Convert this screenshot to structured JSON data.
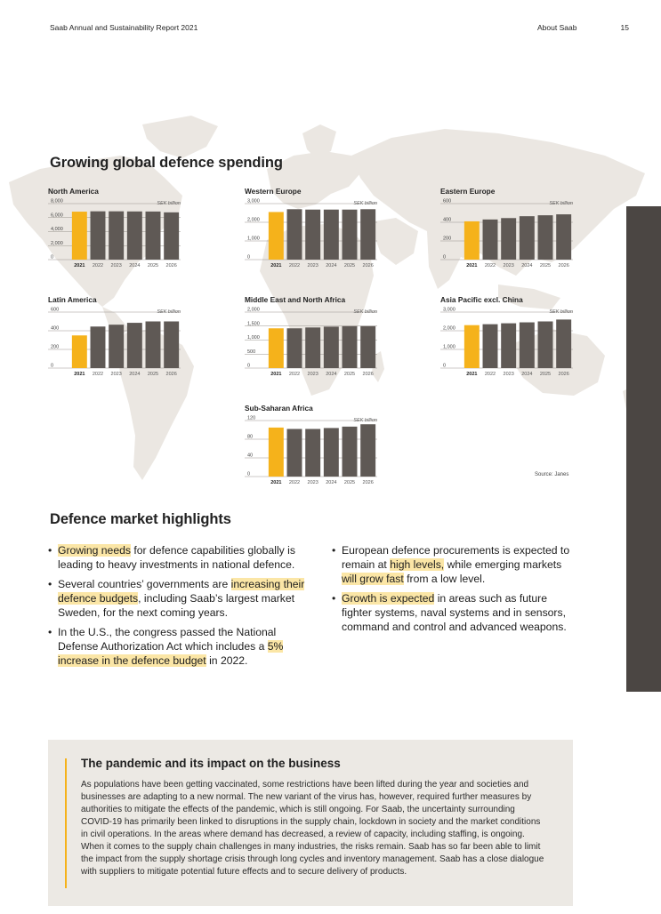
{
  "header": {
    "doc_title": "Saab Annual and Sustainability Report 2021",
    "section": "About Saab",
    "page_number": "15"
  },
  "spending_title": "Growing global defence spending",
  "source": "Source: Janes",
  "colors": {
    "highlight_bar": "#f5b21b",
    "bar": "#5f5955",
    "map": "#ebe7e2",
    "side_tab": "#4b4643"
  },
  "chart_data": [
    {
      "type": "bar",
      "title": "North America",
      "unit": "SEK billion",
      "categories": [
        "2021",
        "2022",
        "2023",
        "2024",
        "2025",
        "2026"
      ],
      "values": [
        6850,
        6900,
        6900,
        6880,
        6870,
        6750
      ],
      "ylim": [
        0,
        8000
      ],
      "yticks": [
        "0",
        "2,000",
        "4,000",
        "6,000",
        "8,000"
      ],
      "ytick_values": [
        0,
        2000,
        4000,
        6000,
        8000
      ]
    },
    {
      "type": "bar",
      "title": "Western Europe",
      "unit": "SEK billion",
      "categories": [
        "2021",
        "2022",
        "2023",
        "2024",
        "2025",
        "2026"
      ],
      "values": [
        2550,
        2700,
        2680,
        2680,
        2680,
        2700
      ],
      "ylim": [
        0,
        3000
      ],
      "yticks": [
        "0",
        "1,000",
        "2,000",
        "3,000"
      ],
      "ytick_values": [
        0,
        1000,
        2000,
        3000
      ]
    },
    {
      "type": "bar",
      "title": "Eastern Europe",
      "unit": "SEK billion",
      "categories": [
        "2021",
        "2022",
        "2023",
        "2024",
        "2025",
        "2026"
      ],
      "values": [
        410,
        430,
        445,
        465,
        475,
        485
      ],
      "ylim": [
        0,
        600
      ],
      "yticks": [
        "0",
        "200",
        "400",
        "600"
      ],
      "ytick_values": [
        0,
        200,
        400,
        600
      ]
    },
    {
      "type": "bar",
      "title": "Latin America",
      "unit": "SEK billion",
      "categories": [
        "2021",
        "2022",
        "2023",
        "2024",
        "2025",
        "2026"
      ],
      "values": [
        350,
        445,
        465,
        485,
        500,
        500
      ],
      "ylim": [
        0,
        600
      ],
      "yticks": [
        "0",
        "200",
        "400",
        "600"
      ],
      "ytick_values": [
        0,
        200,
        400,
        600
      ]
    },
    {
      "type": "bar",
      "title": "Middle East and North Africa",
      "unit": "SEK billion",
      "categories": [
        "2021",
        "2022",
        "2023",
        "2024",
        "2025",
        "2026"
      ],
      "values": [
        1420,
        1420,
        1450,
        1480,
        1500,
        1500
      ],
      "ylim": [
        0,
        2000
      ],
      "yticks": [
        "0",
        "500",
        "1,000",
        "1,500",
        "2,000"
      ],
      "ytick_values": [
        0,
        500,
        1000,
        1500,
        2000
      ]
    },
    {
      "type": "bar",
      "title": "Asia Pacific excl. China",
      "unit": "SEK billion",
      "categories": [
        "2021",
        "2022",
        "2023",
        "2024",
        "2025",
        "2026"
      ],
      "values": [
        2300,
        2350,
        2400,
        2450,
        2500,
        2600
      ],
      "ylim": [
        0,
        3000
      ],
      "yticks": [
        "0",
        "1,000",
        "2,000",
        "3,000"
      ],
      "ytick_values": [
        0,
        1000,
        2000,
        3000
      ]
    },
    {
      "type": "bar",
      "title": "Sub-Saharan Africa",
      "unit": "SEK billion",
      "categories": [
        "2021",
        "2022",
        "2023",
        "2024",
        "2025",
        "2026"
      ],
      "values": [
        105,
        102,
        102,
        104,
        107,
        112
      ],
      "ylim": [
        0,
        120
      ],
      "yticks": [
        "0",
        "40",
        "80",
        "120"
      ],
      "ytick_values": [
        0,
        40,
        80,
        120
      ]
    }
  ],
  "highlights": {
    "title": "Defence market highlights",
    "left": [
      [
        {
          "t": "Growing needs",
          "h": true
        },
        {
          "t": " for defence capabilities globally is leading to heavy investments in national defence.",
          "h": false
        }
      ],
      [
        {
          "t": "Several countries’ governments are ",
          "h": false
        },
        {
          "t": "increasing their defence budgets",
          "h": true
        },
        {
          "t": ", including Saab’s largest market Sweden, for the next coming years.",
          "h": false
        }
      ],
      [
        {
          "t": "In the U.S., the congress passed the National Defense Authorization Act which includes a ",
          "h": false
        },
        {
          "t": "5% increase in the defence budget",
          "h": true
        },
        {
          "t": " in 2022.",
          "h": false
        }
      ]
    ],
    "right": [
      [
        {
          "t": "European defence procurements is expected to remain at ",
          "h": false
        },
        {
          "t": "high levels,",
          "h": true
        },
        {
          "t": " while emerging markets ",
          "h": false
        },
        {
          "t": "will grow fast",
          "h": true
        },
        {
          "t": " from a low level.",
          "h": false
        }
      ],
      [
        {
          "t": "Growth is expected",
          "h": true
        },
        {
          "t": " in areas such as future fighter systems, naval systems and in sensors, command and control and advanced weapons.",
          "h": false
        }
      ]
    ]
  },
  "pandemic_box": {
    "title": "The pandemic and its impact on the business",
    "text": "As populations have been getting vaccinated, some restrictions have been lifted during the year and societies and businesses are adapting to a new normal. The new variant of the virus has, however, required further measures by authorities to mitigate the effects of the pandemic, which is still ongoing. For Saab, the uncertainty surrounding COVID-19 has primarily been linked to disruptions in the supply chain, lockdown in society and the market conditions in civil operations. In the areas where demand has decreased, a review of capacity, including staffing, is ongoing. When it comes to the supply chain challenges in many industries, the risks remain. Saab has so far been able to limit the impact from the supply shortage crisis through long cycles and inventory management. Saab has a close dialogue with suppliers to mitigate potential future effects and to secure delivery of products."
  }
}
